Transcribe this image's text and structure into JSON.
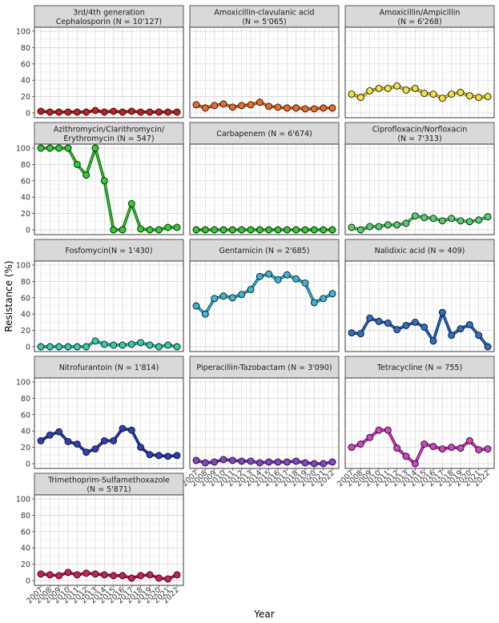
{
  "chart_data": {
    "type": "line",
    "xlabel": "Year",
    "ylabel": "Resistance (%)",
    "x": [
      2007,
      2008,
      2009,
      2010,
      2011,
      2012,
      2013,
      2014,
      2015,
      2016,
      2017,
      2018,
      2019,
      2020,
      2021,
      2022
    ],
    "x_tick_labels": [
      "2007",
      "2008",
      "2009",
      "2010",
      "2011",
      "2012",
      "2013",
      "2014",
      "2015",
      "2016",
      "2017",
      "2018",
      "2019",
      "2020",
      "2021",
      "2022"
    ],
    "ylim": [
      0,
      100
    ],
    "y_ticks": [
      "0",
      "20",
      "40",
      "60",
      "80",
      "100"
    ],
    "grid": true,
    "series": [
      {
        "name": "3rd/4th generation Cephalosporin (N = 10'127)",
        "title_lines": [
          "3rd/4th generation",
          "Cephalosporin (N = 10'127)"
        ],
        "fill": "#cc1a1a",
        "line": "#5a0000",
        "values": [
          2,
          1,
          1,
          1,
          1,
          1,
          3,
          1,
          2,
          1,
          2,
          1,
          1,
          1,
          1,
          1
        ]
      },
      {
        "name": "Amoxicillin-clavulanic acid (N = 5'065)",
        "title_lines": [
          "Amoxicillin-clavulanic acid",
          "(N = 5'065)"
        ],
        "fill": "#f26b21",
        "line": "#8a2e00",
        "values": [
          10,
          6,
          9,
          11,
          7,
          9,
          10,
          13,
          8,
          7,
          6,
          6,
          5,
          5,
          6,
          6
        ]
      },
      {
        "name": "Amoxicillin/Ampicillin (N = 6'268)",
        "title_lines": [
          "Amoxicillin/Ampicillin",
          "(N = 6'268)"
        ],
        "fill": "#f2e13a",
        "line": "#6b5b00",
        "values": [
          23,
          19,
          27,
          30,
          30,
          33,
          28,
          30,
          24,
          23,
          18,
          23,
          25,
          21,
          19,
          20
        ]
      },
      {
        "name": "Azithromycin/Clarithromycin/Erythromycin (N = 547)",
        "title_lines": [
          "Azithromycin/Clarithromycin/",
          "Erythromycin (N = 547)"
        ],
        "fill": "#2bd12b",
        "line": "#145c14",
        "values": [
          100,
          100,
          100,
          100,
          80,
          67,
          100,
          60,
          0,
          0,
          32,
          1,
          0,
          0,
          3,
          3
        ]
      },
      {
        "name": "Carbapenem (N = 6'674)",
        "title_lines": [
          "Carbapenem (N = 6'674)"
        ],
        "fill": "#2bcc2b",
        "line": "#0e5f0e",
        "values": [
          0,
          0,
          0,
          0,
          0,
          0,
          0,
          0,
          0,
          0,
          0,
          0,
          0,
          0,
          0,
          0
        ]
      },
      {
        "name": "Ciprofloxacin/Norfloxacin (N = 7'313)",
        "title_lines": [
          "Ciprofloxacin/Norfloxacin",
          "(N = 7'313)"
        ],
        "fill": "#4fd26a",
        "line": "#1d6b2d",
        "values": [
          3,
          0,
          4,
          4,
          6,
          6,
          8,
          17,
          15,
          14,
          11,
          14,
          11,
          10,
          12,
          16
        ]
      },
      {
        "name": "Fosfomycin(N = 1'430)",
        "title_lines": [
          "Fosfomycin(N = 1'430)"
        ],
        "fill": "#2ecfb0",
        "line": "#0e6b5a",
        "values": [
          0,
          0,
          0,
          0,
          0,
          0,
          7,
          3,
          2,
          2,
          3,
          5,
          2,
          0,
          2,
          0
        ]
      },
      {
        "name": "Gentamicin (N = 2'685)",
        "title_lines": [
          "Gentamicin (N = 2'685)"
        ],
        "fill": "#35b8d8",
        "line": "#0a5670",
        "values": [
          50,
          40,
          59,
          62,
          60,
          64,
          70,
          86,
          89,
          82,
          88,
          83,
          78,
          54,
          59,
          65
        ]
      },
      {
        "name": "Nalidixic acid (N = 409)",
        "title_lines": [
          "Nalidixic acid (N = 409)"
        ],
        "fill": "#2a6fc9",
        "line": "#0a2a66",
        "values": [
          17,
          16,
          35,
          31,
          29,
          21,
          26,
          30,
          24,
          7,
          42,
          14,
          22,
          27,
          14,
          0
        ]
      },
      {
        "name": "Nitrofurantoin (N = 1'814)",
        "title_lines": [
          "Nitrofurantoin (N = 1'814)"
        ],
        "fill": "#2a3fbf",
        "line": "#0a1060",
        "values": [
          28,
          35,
          39,
          27,
          24,
          14,
          18,
          28,
          28,
          43,
          41,
          20,
          11,
          10,
          9,
          10
        ]
      },
      {
        "name": "Piperacillin-Tazobactam (N = 3'090)",
        "title_lines": [
          "Piperacillin-Tazobactam (N = 3'090)"
        ],
        "fill": "#8a3fd1",
        "line": "#3a0f6b",
        "values": [
          4,
          1,
          2,
          5,
          4,
          3,
          3,
          1,
          2,
          2,
          2,
          3,
          1,
          0,
          0,
          2
        ]
      },
      {
        "name": "Tetracycline (N = 755)",
        "title_lines": [
          "Tetracycline (N = 755)"
        ],
        "fill": "#d63fc7",
        "line": "#6b0f60",
        "values": [
          20,
          24,
          32,
          41,
          41,
          19,
          9,
          0,
          24,
          21,
          18,
          20,
          19,
          28,
          17,
          18
        ]
      },
      {
        "name": "Trimethoprim-Sulfamethoxazole (N = 5'871)",
        "title_lines": [
          "Trimethoprim-Sulfamethoxazole",
          "(N = 5'871)"
        ],
        "fill": "#d61a5c",
        "line": "#6b0025",
        "values": [
          8,
          7,
          6,
          10,
          7,
          9,
          8,
          7,
          6,
          6,
          3,
          6,
          7,
          3,
          2,
          7
        ]
      }
    ]
  }
}
